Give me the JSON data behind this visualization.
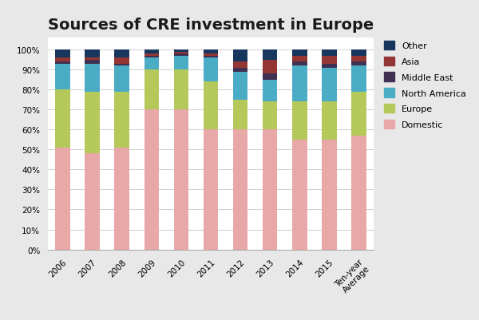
{
  "title": "Sources of CRE investment in Europe",
  "categories": [
    "2006",
    "2007",
    "2008",
    "2009",
    "2010",
    "2011",
    "2012",
    "2013",
    "2014",
    "2015",
    "Ten-year\nAverage"
  ],
  "series": {
    "Domestic": [
      51,
      48,
      51,
      70,
      70,
      60,
      60,
      60,
      55,
      55,
      57
    ],
    "Europe": [
      29,
      31,
      28,
      20,
      20,
      24,
      15,
      14,
      19,
      19,
      22
    ],
    "North America": [
      13,
      14,
      13,
      6,
      7,
      12,
      14,
      11,
      18,
      17,
      13
    ],
    "Middle East": [
      1,
      2,
      1,
      1,
      1,
      1,
      2,
      3,
      2,
      2,
      2
    ],
    "Asia": [
      2,
      1,
      3,
      1,
      1,
      1,
      3,
      7,
      3,
      4,
      3
    ],
    "Other": [
      4,
      4,
      4,
      2,
      1,
      2,
      6,
      5,
      3,
      3,
      3
    ]
  },
  "colors": {
    "Domestic": "#e8a8a8",
    "Europe": "#b5c95a",
    "North America": "#4bacc6",
    "Middle East": "#403152",
    "Asia": "#943634",
    "Other": "#17375e"
  },
  "layer_order": [
    "Domestic",
    "Europe",
    "North America",
    "Middle East",
    "Asia",
    "Other"
  ],
  "legend_order": [
    "Other",
    "Asia",
    "Middle East",
    "North America",
    "Europe",
    "Domestic"
  ],
  "title_fontsize": 14,
  "tick_fontsize": 7.5,
  "legend_fontsize": 8,
  "bar_width": 0.5,
  "fig_bgcolor": "#e8e8e8",
  "plot_bgcolor": "#ffffff",
  "grid_color": "#c8c8c8",
  "spine_color": "#aaaaaa"
}
